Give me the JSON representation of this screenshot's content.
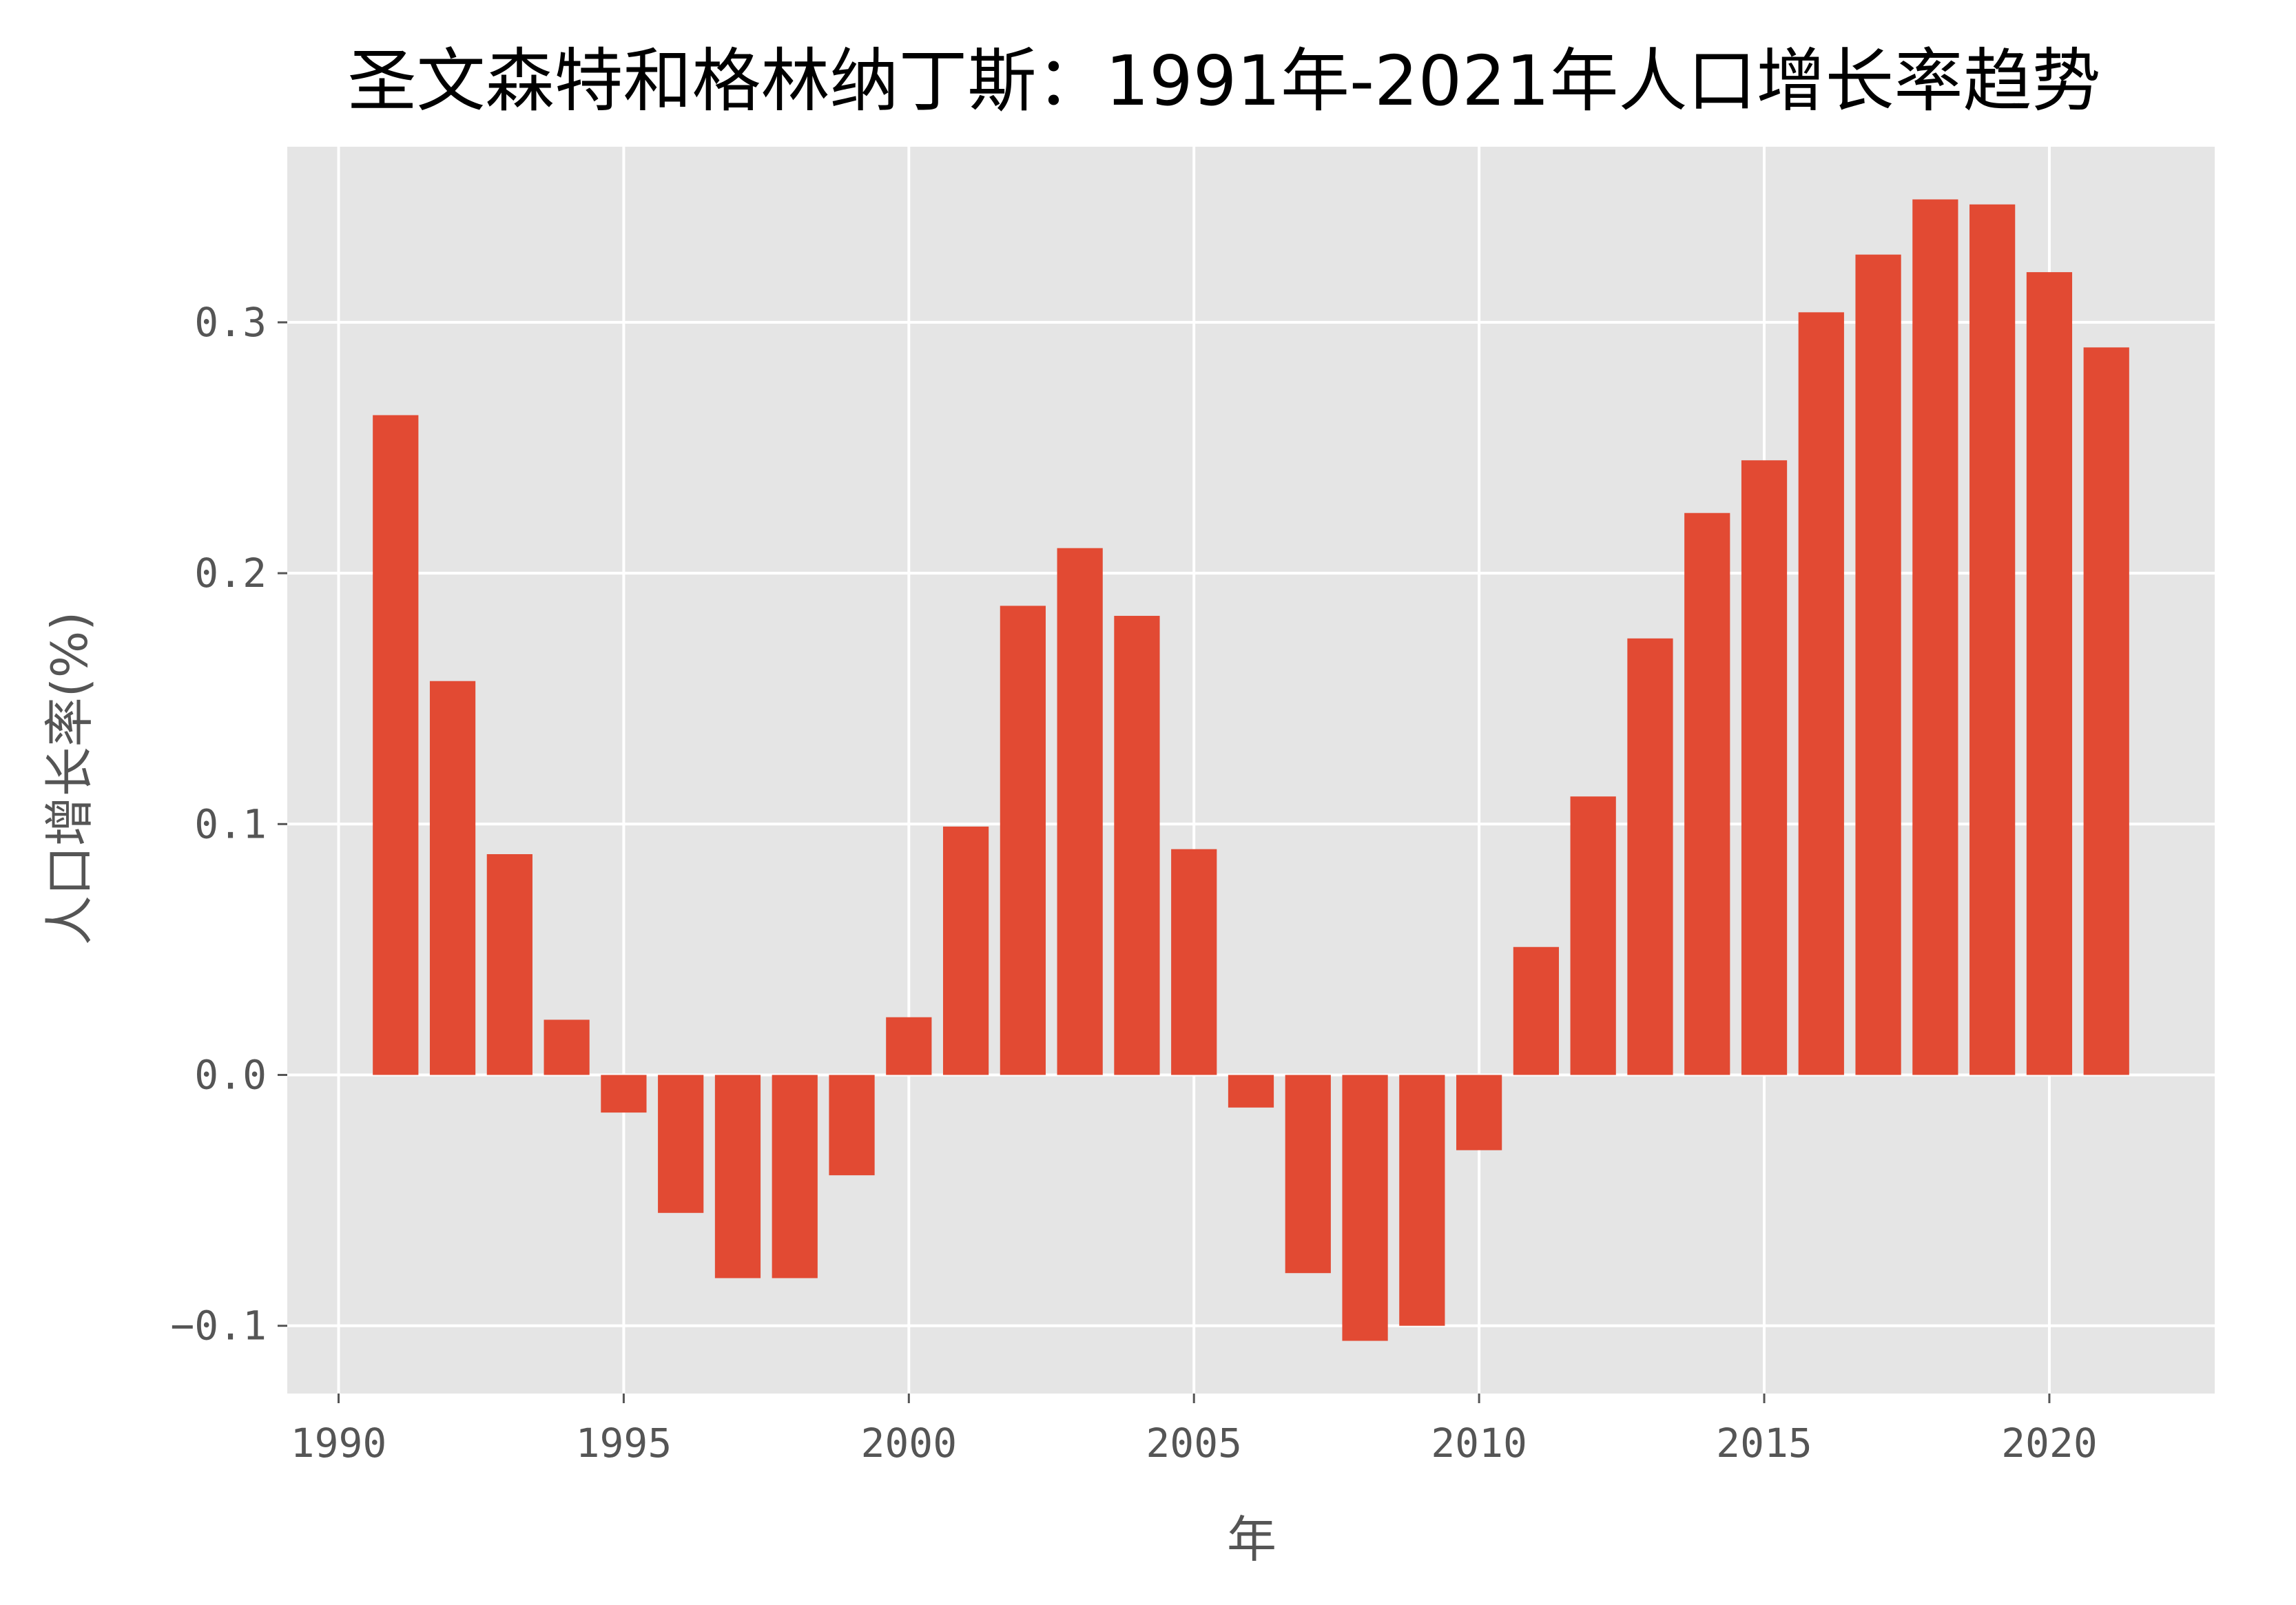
{
  "chart_data": {
    "type": "bar",
    "title": "圣文森特和格林纳丁斯：1991年-2021年人口增长率趋势",
    "xlabel": "年",
    "ylabel": "人口增长率(%)",
    "x": [
      1991,
      1992,
      1993,
      1994,
      1995,
      1996,
      1997,
      1998,
      1999,
      2000,
      2001,
      2002,
      2003,
      2004,
      2005,
      2006,
      2007,
      2008,
      2009,
      2010,
      2011,
      2012,
      2013,
      2014,
      2015,
      2016,
      2017,
      2018,
      2019,
      2020,
      2021
    ],
    "values": [
      0.263,
      0.157,
      0.088,
      0.022,
      -0.015,
      -0.055,
      -0.081,
      -0.081,
      -0.04,
      0.023,
      0.099,
      0.187,
      0.21,
      0.183,
      0.09,
      -0.013,
      -0.079,
      -0.106,
      -0.1,
      -0.03,
      0.051,
      0.111,
      0.174,
      0.224,
      0.245,
      0.304,
      0.327,
      0.349,
      0.347,
      0.32,
      0.29
    ],
    "xlim": [
      1989.1,
      2022.9
    ],
    "ylim": [
      -0.127,
      0.37
    ],
    "xticks": [
      1990,
      1995,
      2000,
      2005,
      2010,
      2015,
      2020
    ],
    "yticks": [
      -0.1,
      0.0,
      0.1,
      0.2,
      0.3
    ],
    "ytick_labels": [
      "−0.1",
      "0.0",
      "0.1",
      "0.2",
      "0.3"
    ],
    "grid": true,
    "bar_color": "#E24A33",
    "background_color": "#E5E5E5",
    "grid_color": "#FFFFFF"
  }
}
